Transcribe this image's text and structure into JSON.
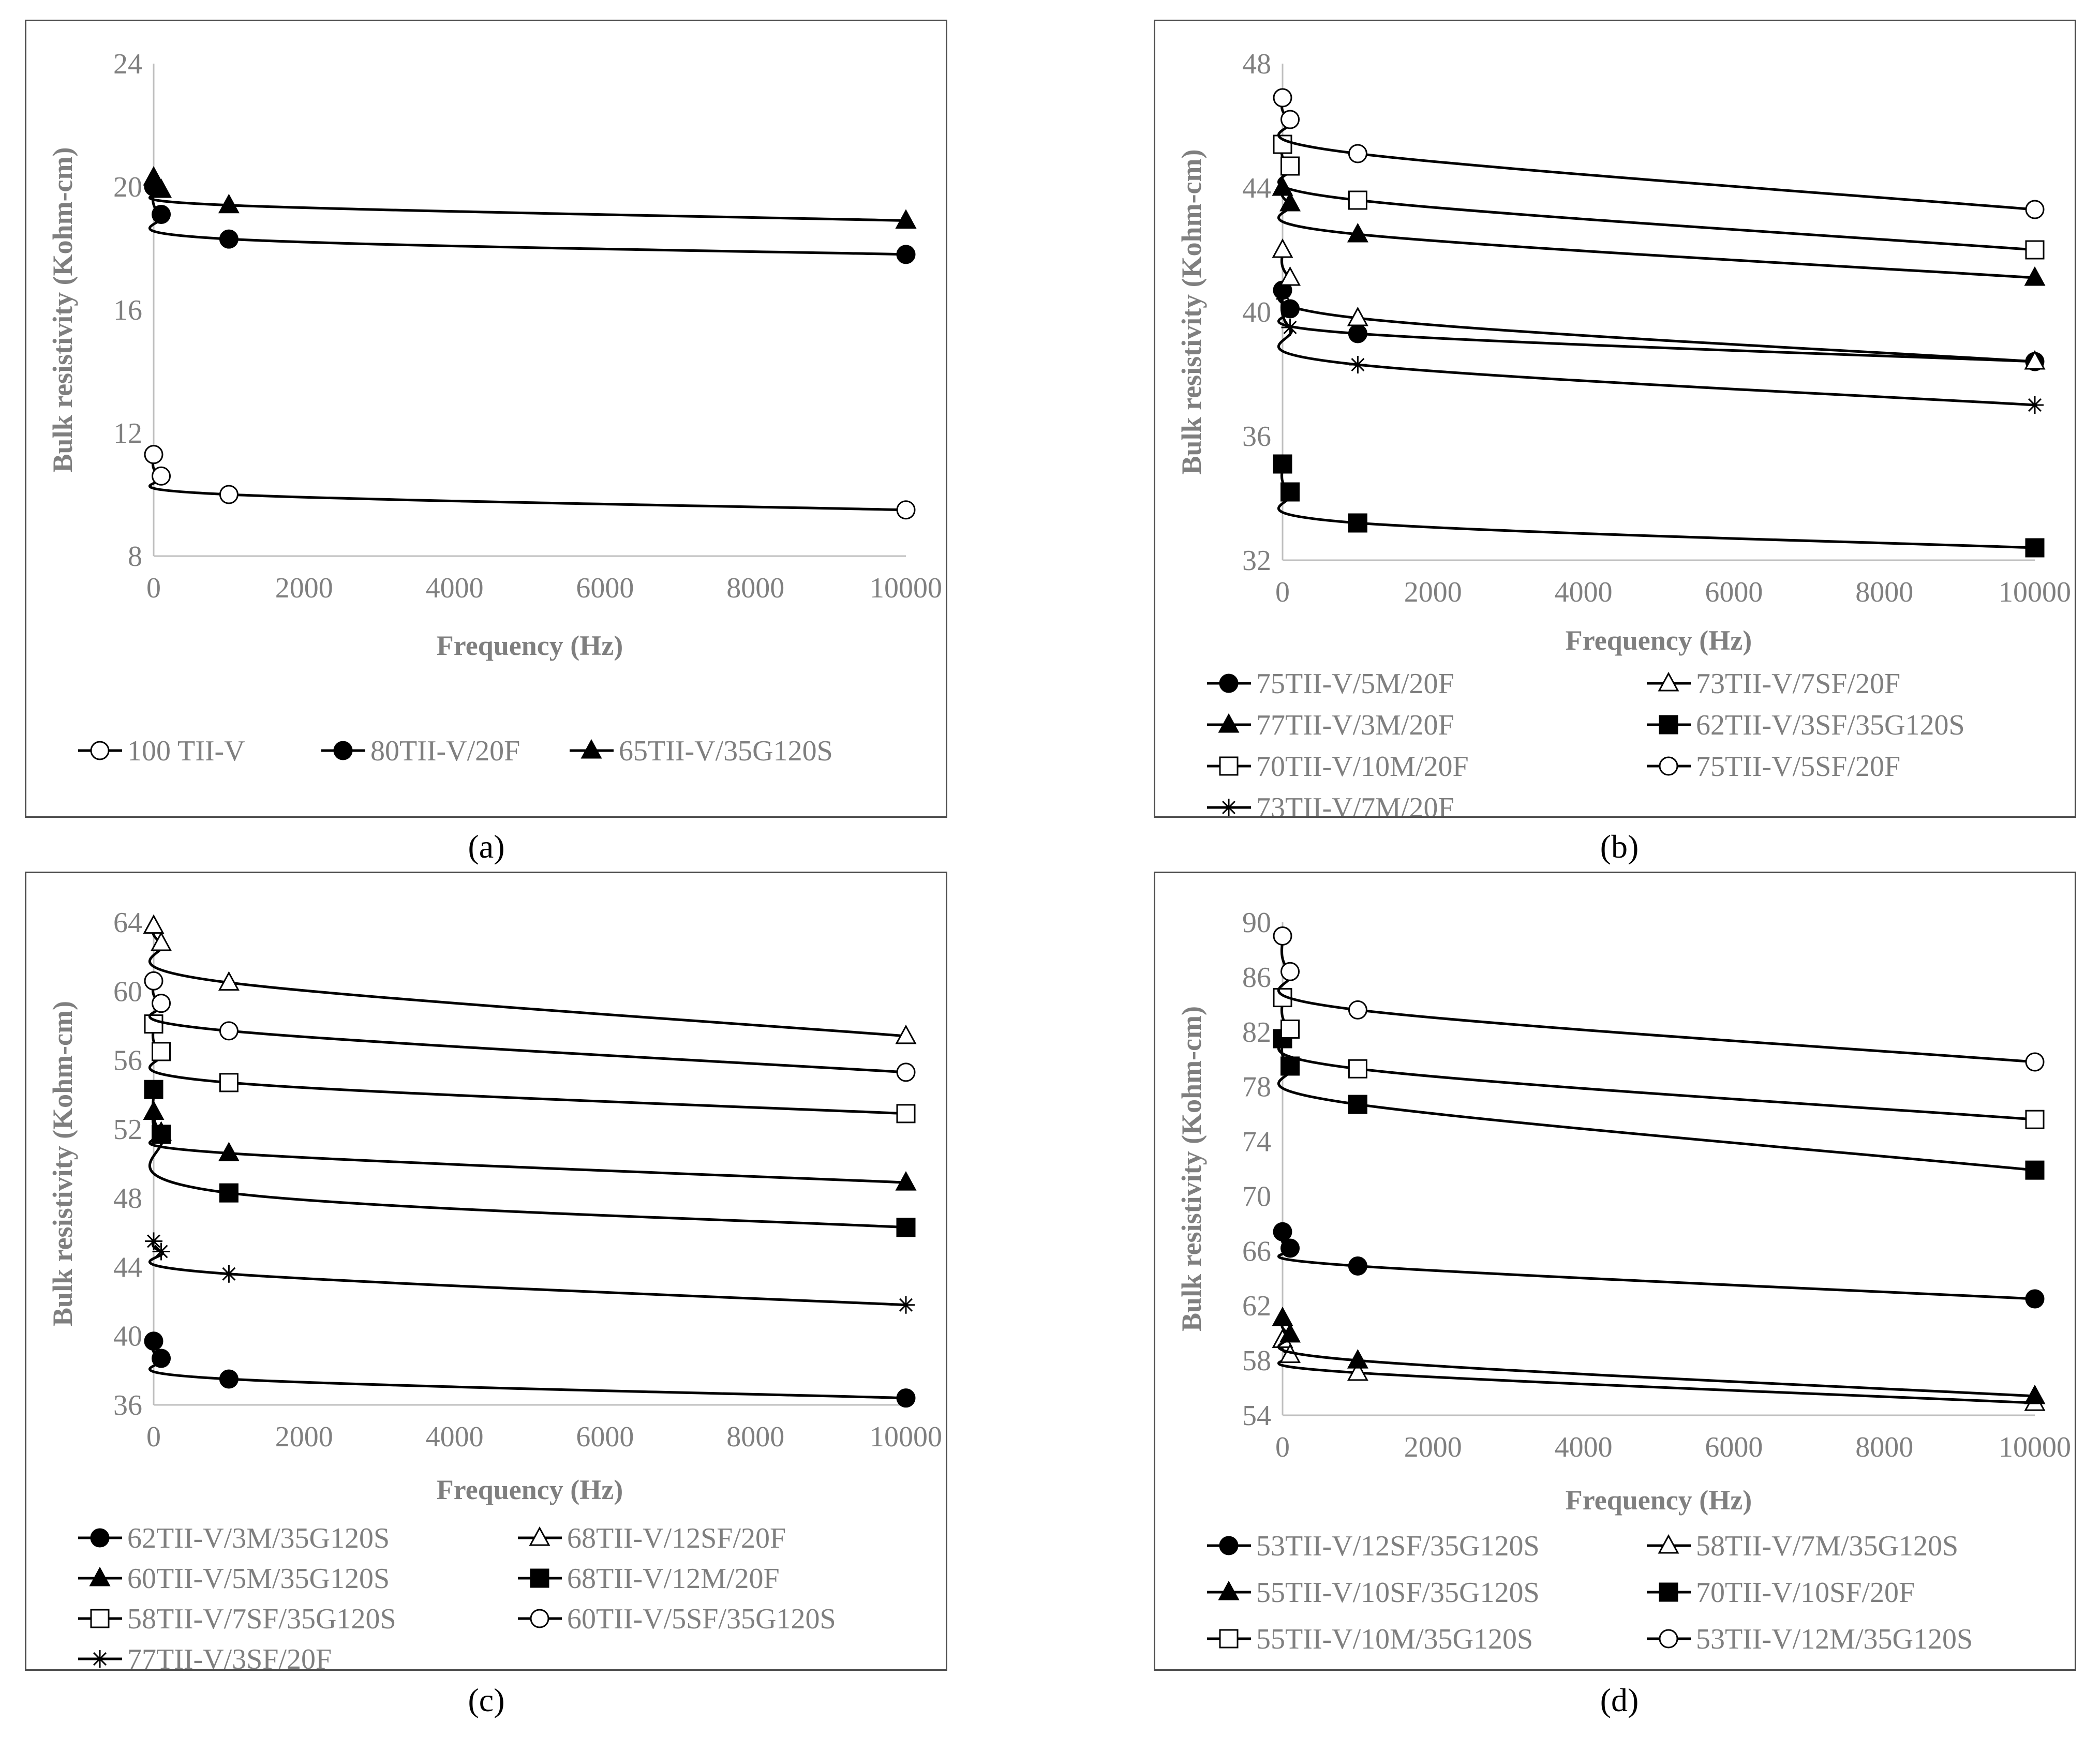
{
  "captions": [
    "(a)",
    "(b)",
    "(c)",
    "(d)"
  ],
  "chart_data": [
    {
      "id": "a",
      "type": "line",
      "title": "",
      "xlabel": "Frequency (Hz)",
      "ylabel": "Bulk resistivity (Kohm-cm)",
      "xlim": [
        0,
        10000
      ],
      "xticks": [
        0,
        2000,
        4000,
        6000,
        8000,
        10000
      ],
      "ylim": [
        8,
        24
      ],
      "yticks": [
        8,
        12,
        16,
        20,
        24
      ],
      "x": [
        1,
        100,
        1000,
        10000
      ],
      "legend_columns": 3,
      "series": [
        {
          "name": "100 TII-V",
          "marker": "circle-open",
          "values": [
            11.3,
            10.6,
            10.0,
            9.5
          ]
        },
        {
          "name": "80TII-V/20F",
          "marker": "circle-filled",
          "values": [
            20.0,
            19.1,
            18.3,
            17.8
          ]
        },
        {
          "name": "65TII-V/35G120S",
          "marker": "triangle-filled",
          "values": [
            20.3,
            19.9,
            19.4,
            18.9
          ]
        }
      ]
    },
    {
      "id": "b",
      "type": "line",
      "title": "",
      "xlabel": "Frequency (Hz)",
      "ylabel": "Bulk resistivity (Kohm-cm)",
      "xlim": [
        0,
        10000
      ],
      "xticks": [
        0,
        2000,
        4000,
        6000,
        8000,
        10000
      ],
      "ylim": [
        32,
        48
      ],
      "yticks": [
        32,
        36,
        40,
        44,
        48
      ],
      "x": [
        1,
        100,
        1000,
        10000
      ],
      "legend_columns": 2,
      "series": [
        {
          "name": "75TII-V/5M/20F",
          "marker": "circle-filled",
          "values": [
            40.7,
            40.1,
            39.3,
            38.4
          ]
        },
        {
          "name": "73TII-V/7SF/20F",
          "marker": "triangle-open",
          "values": [
            42.0,
            41.1,
            39.8,
            38.4
          ]
        },
        {
          "name": "77TII-V/3M/20F",
          "marker": "triangle-filled",
          "values": [
            44.0,
            43.5,
            42.5,
            41.1
          ]
        },
        {
          "name": "62TII-V/3SF/35G120S",
          "marker": "square-filled",
          "values": [
            35.1,
            34.2,
            33.2,
            32.4
          ]
        },
        {
          "name": "70TII-V/10M/20F",
          "marker": "square-open",
          "values": [
            45.4,
            44.7,
            43.6,
            42.0
          ]
        },
        {
          "name": "75TII-V/5SF/20F",
          "marker": "circle-open",
          "values": [
            46.9,
            46.2,
            45.1,
            43.3
          ]
        },
        {
          "name": "73TII-V/7M/20F",
          "marker": "star",
          "values": [
            40.6,
            39.5,
            38.3,
            37.0
          ]
        }
      ]
    },
    {
      "id": "c",
      "type": "line",
      "title": "",
      "xlabel": "Frequency (Hz)",
      "ylabel": "Bulk resistivity (Kohm-cm)",
      "xlim": [
        0,
        10000
      ],
      "xticks": [
        0,
        2000,
        4000,
        6000,
        8000,
        10000
      ],
      "ylim": [
        36,
        64
      ],
      "yticks": [
        36,
        40,
        44,
        48,
        52,
        56,
        60,
        64
      ],
      "x": [
        1,
        100,
        1000,
        10000
      ],
      "legend_columns": 2,
      "series": [
        {
          "name": "62TII-V/3M/35G120S",
          "marker": "circle-filled",
          "values": [
            39.7,
            38.7,
            37.5,
            36.4
          ]
        },
        {
          "name": "68TII-V/12SF/20F",
          "marker": "triangle-open",
          "values": [
            63.8,
            62.8,
            60.5,
            57.4
          ]
        },
        {
          "name": "60TII-V/5M/35G120S",
          "marker": "triangle-filled",
          "values": [
            53.0,
            51.8,
            50.6,
            48.9
          ]
        },
        {
          "name": "68TII-V/12M/20F",
          "marker": "square-filled",
          "values": [
            54.3,
            51.7,
            48.3,
            46.3
          ]
        },
        {
          "name": "58TII-V/7SF/35G120S",
          "marker": "square-open",
          "values": [
            58.1,
            56.5,
            54.7,
            52.9
          ]
        },
        {
          "name": "60TII-V/5SF/35G120S",
          "marker": "circle-open",
          "values": [
            60.6,
            59.3,
            57.7,
            55.3
          ]
        },
        {
          "name": "77TII-V/3SF/20F",
          "marker": "star",
          "values": [
            45.5,
            44.9,
            43.6,
            41.8
          ]
        }
      ]
    },
    {
      "id": "d",
      "type": "line",
      "title": "",
      "xlabel": "Frequency (Hz)",
      "ylabel": "Bulk resistivity (Kohm-cm)",
      "xlim": [
        0,
        10000
      ],
      "xticks": [
        0,
        2000,
        4000,
        6000,
        8000,
        10000
      ],
      "ylim": [
        54,
        90
      ],
      "yticks": [
        54,
        58,
        62,
        66,
        70,
        74,
        78,
        82,
        86,
        90
      ],
      "x": [
        1,
        100,
        1000,
        10000
      ],
      "legend_columns": 2,
      "series": [
        {
          "name": "53TII-V/12SF/35G120S",
          "marker": "circle-filled",
          "values": [
            67.4,
            66.2,
            64.9,
            62.5
          ]
        },
        {
          "name": "58TII-V/7M/35G120S",
          "marker": "triangle-open",
          "values": [
            59.5,
            58.4,
            57.1,
            54.9
          ]
        },
        {
          "name": "55TII-V/10SF/35G120S",
          "marker": "triangle-filled",
          "values": [
            61.1,
            59.9,
            58.0,
            55.4
          ]
        },
        {
          "name": "70TII-V/10SF/20F",
          "marker": "square-filled",
          "values": [
            81.5,
            79.5,
            76.7,
            71.9
          ]
        },
        {
          "name": "55TII-V/10M/35G120S",
          "marker": "square-open",
          "values": [
            84.5,
            82.2,
            79.3,
            75.6
          ]
        },
        {
          "name": "53TII-V/12M/35G120S",
          "marker": "circle-open",
          "values": [
            89.0,
            86.4,
            83.6,
            79.8
          ]
        }
      ]
    }
  ]
}
